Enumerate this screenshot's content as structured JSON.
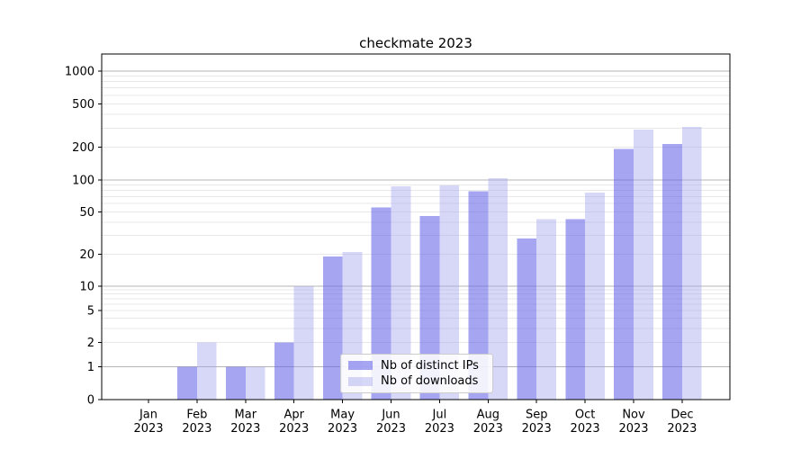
{
  "chart_data": {
    "type": "bar",
    "title": "checkmate 2023",
    "xlabel": "",
    "ylabel": "",
    "y_axis": {
      "scale": "symlog",
      "range": [
        0,
        1000
      ],
      "ticks": [
        0,
        1,
        2,
        5,
        10,
        20,
        50,
        100,
        200,
        500,
        1000
      ],
      "tick_labels": [
        "0",
        "1",
        "2",
        "5",
        "10",
        "20",
        "50",
        "100",
        "200",
        "500",
        "1000"
      ],
      "grid": "horizontal major + log minor gridlines"
    },
    "x_labels": [
      {
        "month": "Jan",
        "year": "2023"
      },
      {
        "month": "Feb",
        "year": "2023"
      },
      {
        "month": "Mar",
        "year": "2023"
      },
      {
        "month": "Apr",
        "year": "2023"
      },
      {
        "month": "May",
        "year": "2023"
      },
      {
        "month": "Jun",
        "year": "2023"
      },
      {
        "month": "Jul",
        "year": "2023"
      },
      {
        "month": "Aug",
        "year": "2023"
      },
      {
        "month": "Sep",
        "year": "2023"
      },
      {
        "month": "Oct",
        "year": "2023"
      },
      {
        "month": "Nov",
        "year": "2023"
      },
      {
        "month": "Dec",
        "year": "2023"
      }
    ],
    "series": [
      {
        "name": "Nb of distinct IPs",
        "color": "#6464e8",
        "opacity": 0.58,
        "values": [
          0,
          1,
          1,
          2,
          19,
          55,
          46,
          78,
          28,
          43,
          192,
          215
        ]
      },
      {
        "name": "Nb of downloads",
        "color": "#a0a0eb",
        "opacity": 0.42,
        "values": [
          0,
          2,
          1,
          10,
          21,
          87,
          89,
          104,
          43,
          76,
          290,
          308
        ]
      }
    ],
    "legend": {
      "position": "lower center, inside plot",
      "entries": [
        "Nb of distinct IPs",
        "Nb of downloads"
      ]
    }
  }
}
